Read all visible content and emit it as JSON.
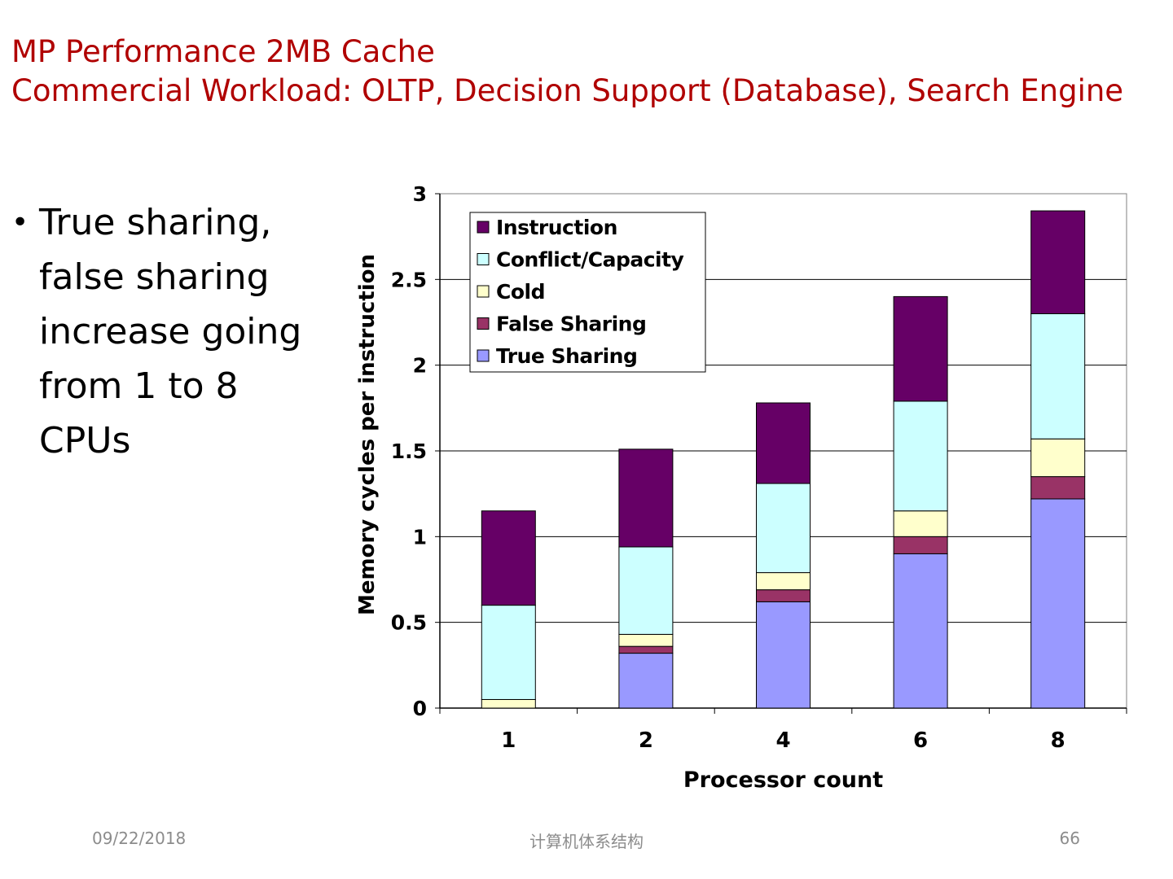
{
  "slide": {
    "title_line1": "MP Performance 2MB Cache",
    "title_line2": "Commercial Workload: OLTP, Decision Support (Database), Search Engine",
    "bullet": "True sharing, false sharing increase going from 1 to 8 CPUs",
    "footer_date": "09/22/2018",
    "footer_center": "计算机体系结构",
    "footer_page": "66"
  },
  "chart_data": {
    "type": "bar",
    "stacked": true,
    "categories": [
      "1",
      "2",
      "4",
      "6",
      "8"
    ],
    "xlabel": "Processor count",
    "ylabel": "Memory cycles per instruction",
    "ylim": [
      0,
      3
    ],
    "yticks": [
      "0",
      "0.5",
      "1",
      "1.5",
      "2",
      "2.5",
      "3"
    ],
    "grid": true,
    "legend_position": "top-left",
    "series": [
      {
        "name": "True Sharing",
        "color": "#9999ff",
        "values": [
          0,
          0.32,
          0.62,
          0.9,
          1.22
        ]
      },
      {
        "name": "False Sharing",
        "color": "#993366",
        "values": [
          0,
          0.04,
          0.07,
          0.1,
          0.13
        ]
      },
      {
        "name": "Cold",
        "color": "#ffffcc",
        "values": [
          0.05,
          0.07,
          0.1,
          0.15,
          0.22
        ]
      },
      {
        "name": "Conflict/Capacity",
        "color": "#ccffff",
        "values": [
          0.55,
          0.51,
          0.52,
          0.64,
          0.73
        ]
      },
      {
        "name": "Instruction",
        "color": "#660066",
        "values": [
          0.55,
          0.57,
          0.47,
          0.61,
          0.6
        ]
      }
    ]
  }
}
